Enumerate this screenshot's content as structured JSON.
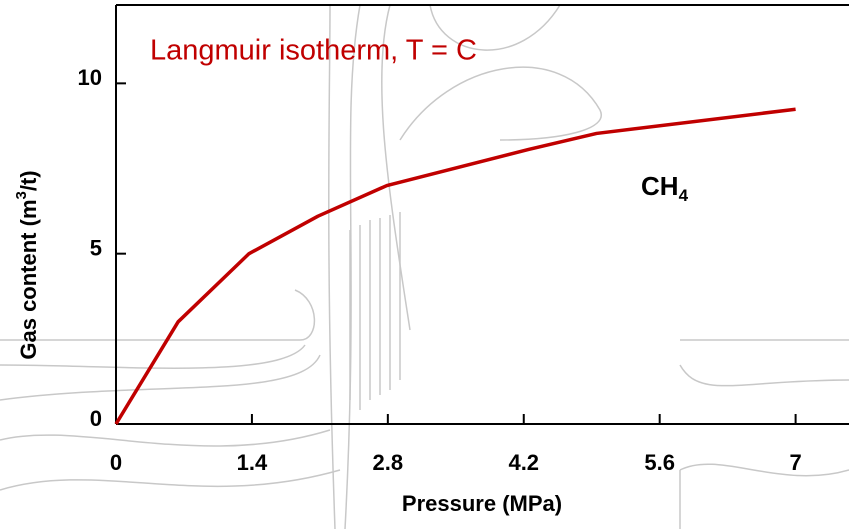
{
  "chart_data": {
    "type": "line",
    "x_label": "Pressure (MPa)",
    "y_label_parts": [
      "Gas content (m",
      "3",
      "/t)"
    ],
    "annotation": "Langmuir isotherm, T = C",
    "gas_label_parts": [
      "CH",
      "4"
    ],
    "x": [
      0,
      0.64,
      1.37,
      2.08,
      2.79,
      4.25,
      4.95,
      7
    ],
    "series": [
      {
        "color": "#c00000",
        "values": [
          0,
          3.0,
          5.0,
          6.1,
          7.0,
          8.06,
          8.53,
          9.24
        ]
      }
    ],
    "xlim": [
      0,
      7.55
    ],
    "ylim": [
      0,
      12.3
    ],
    "xticks": [
      0,
      1.4,
      2.8,
      4.2,
      5.6,
      7
    ],
    "yticks": [
      0,
      5,
      10
    ]
  }
}
